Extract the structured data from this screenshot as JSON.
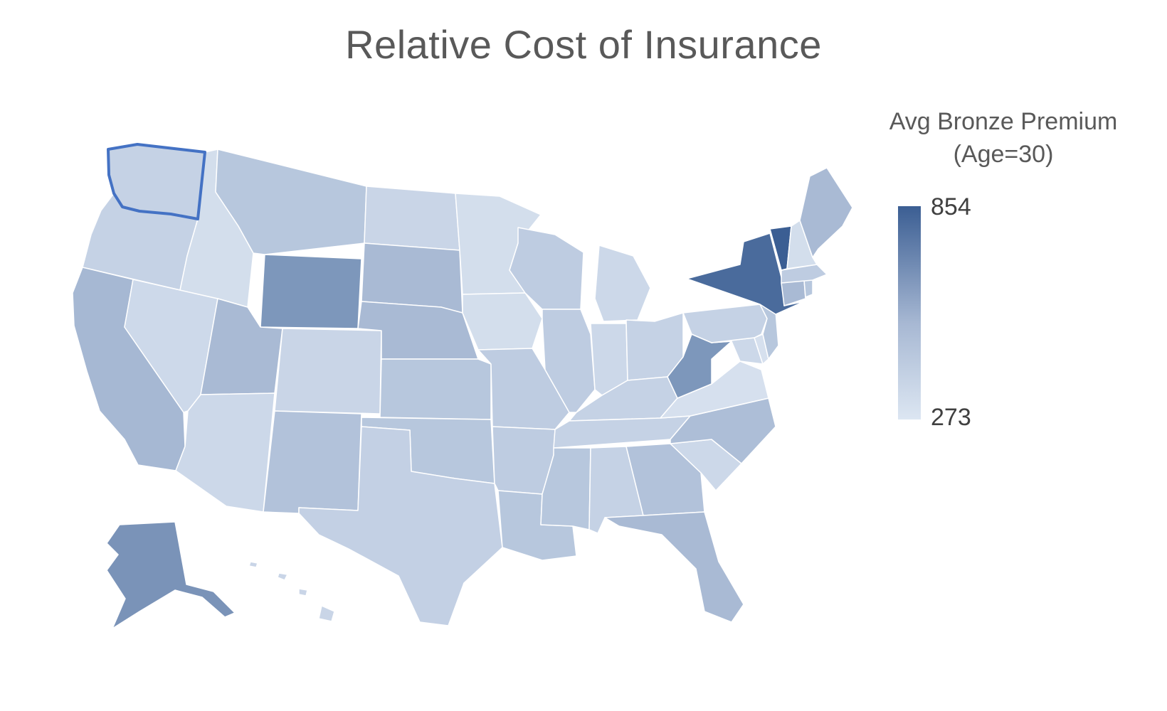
{
  "title": "Relative Cost of Insurance",
  "legend": {
    "title_line1": "Avg Bronze Premium",
    "title_line2": "(Age=30)",
    "max": "854",
    "min": "273",
    "color_max": "#3B5E93",
    "color_min": "#DCE6F2"
  },
  "selected_state": "Washington",
  "highlight_color": "#4472C4",
  "states": [
    {
      "name": "Washington",
      "fill": "#C5D2E5"
    },
    {
      "name": "Oregon",
      "fill": "#C5D2E5"
    },
    {
      "name": "California",
      "fill": "#A6B8D3"
    },
    {
      "name": "Nevada",
      "fill": "#CDD9EA"
    },
    {
      "name": "Idaho",
      "fill": "#D3DEEC"
    },
    {
      "name": "Montana",
      "fill": "#B7C7DD"
    },
    {
      "name": "Wyoming",
      "fill": "#7D97BB"
    },
    {
      "name": "Utah",
      "fill": "#A9BAD4"
    },
    {
      "name": "Arizona",
      "fill": "#CCD8E9"
    },
    {
      "name": "Colorado",
      "fill": "#C9D5E7"
    },
    {
      "name": "New Mexico",
      "fill": "#B2C2DA"
    },
    {
      "name": "North Dakota",
      "fill": "#C9D5E7"
    },
    {
      "name": "South Dakota",
      "fill": "#A9BAD4"
    },
    {
      "name": "Nebraska",
      "fill": "#A9BAD4"
    },
    {
      "name": "Kansas",
      "fill": "#B7C7DD"
    },
    {
      "name": "Oklahoma",
      "fill": "#B7C7DD"
    },
    {
      "name": "Texas",
      "fill": "#C3D0E4"
    },
    {
      "name": "Minnesota",
      "fill": "#D3DEEC"
    },
    {
      "name": "Iowa",
      "fill": "#D3DEEC"
    },
    {
      "name": "Missouri",
      "fill": "#BECCE1"
    },
    {
      "name": "Arkansas",
      "fill": "#BECCE1"
    },
    {
      "name": "Louisiana",
      "fill": "#B7C7DD"
    },
    {
      "name": "Wisconsin",
      "fill": "#BECCE1"
    },
    {
      "name": "Illinois",
      "fill": "#BECCE1"
    },
    {
      "name": "Michigan",
      "fill": "#CCD8E9"
    },
    {
      "name": "Indiana",
      "fill": "#CCD8E9"
    },
    {
      "name": "Ohio",
      "fill": "#C5D2E5"
    },
    {
      "name": "Kentucky",
      "fill": "#C5D2E5"
    },
    {
      "name": "Tennessee",
      "fill": "#C5D2E5"
    },
    {
      "name": "Mississippi",
      "fill": "#B7C7DD"
    },
    {
      "name": "Alabama",
      "fill": "#C5D2E5"
    },
    {
      "name": "Georgia",
      "fill": "#B2C2DA"
    },
    {
      "name": "Florida",
      "fill": "#A9BAD4"
    },
    {
      "name": "South Carolina",
      "fill": "#CCD8E9"
    },
    {
      "name": "North Carolina",
      "fill": "#ADBED7"
    },
    {
      "name": "Virginia",
      "fill": "#D6E0EE"
    },
    {
      "name": "West Virginia",
      "fill": "#7D97BB"
    },
    {
      "name": "Maryland",
      "fill": "#CCD8E9"
    },
    {
      "name": "Delaware",
      "fill": "#D6E0EE"
    },
    {
      "name": "Pennsylvania",
      "fill": "#C5D2E5"
    },
    {
      "name": "New Jersey",
      "fill": "#B7C7DD"
    },
    {
      "name": "New York",
      "fill": "#4A6B9C"
    },
    {
      "name": "Connecticut",
      "fill": "#A9BAD4"
    },
    {
      "name": "Rhode Island",
      "fill": "#B7C7DD"
    },
    {
      "name": "Massachusetts",
      "fill": "#BECCE1"
    },
    {
      "name": "Vermont",
      "fill": "#3B5E93"
    },
    {
      "name": "New Hampshire",
      "fill": "#D3DEEC"
    },
    {
      "name": "Maine",
      "fill": "#A9BAD4"
    },
    {
      "name": "Alaska",
      "fill": "#7A93B8"
    },
    {
      "name": "Hawaii",
      "fill": "#C9D5E7"
    }
  ]
}
